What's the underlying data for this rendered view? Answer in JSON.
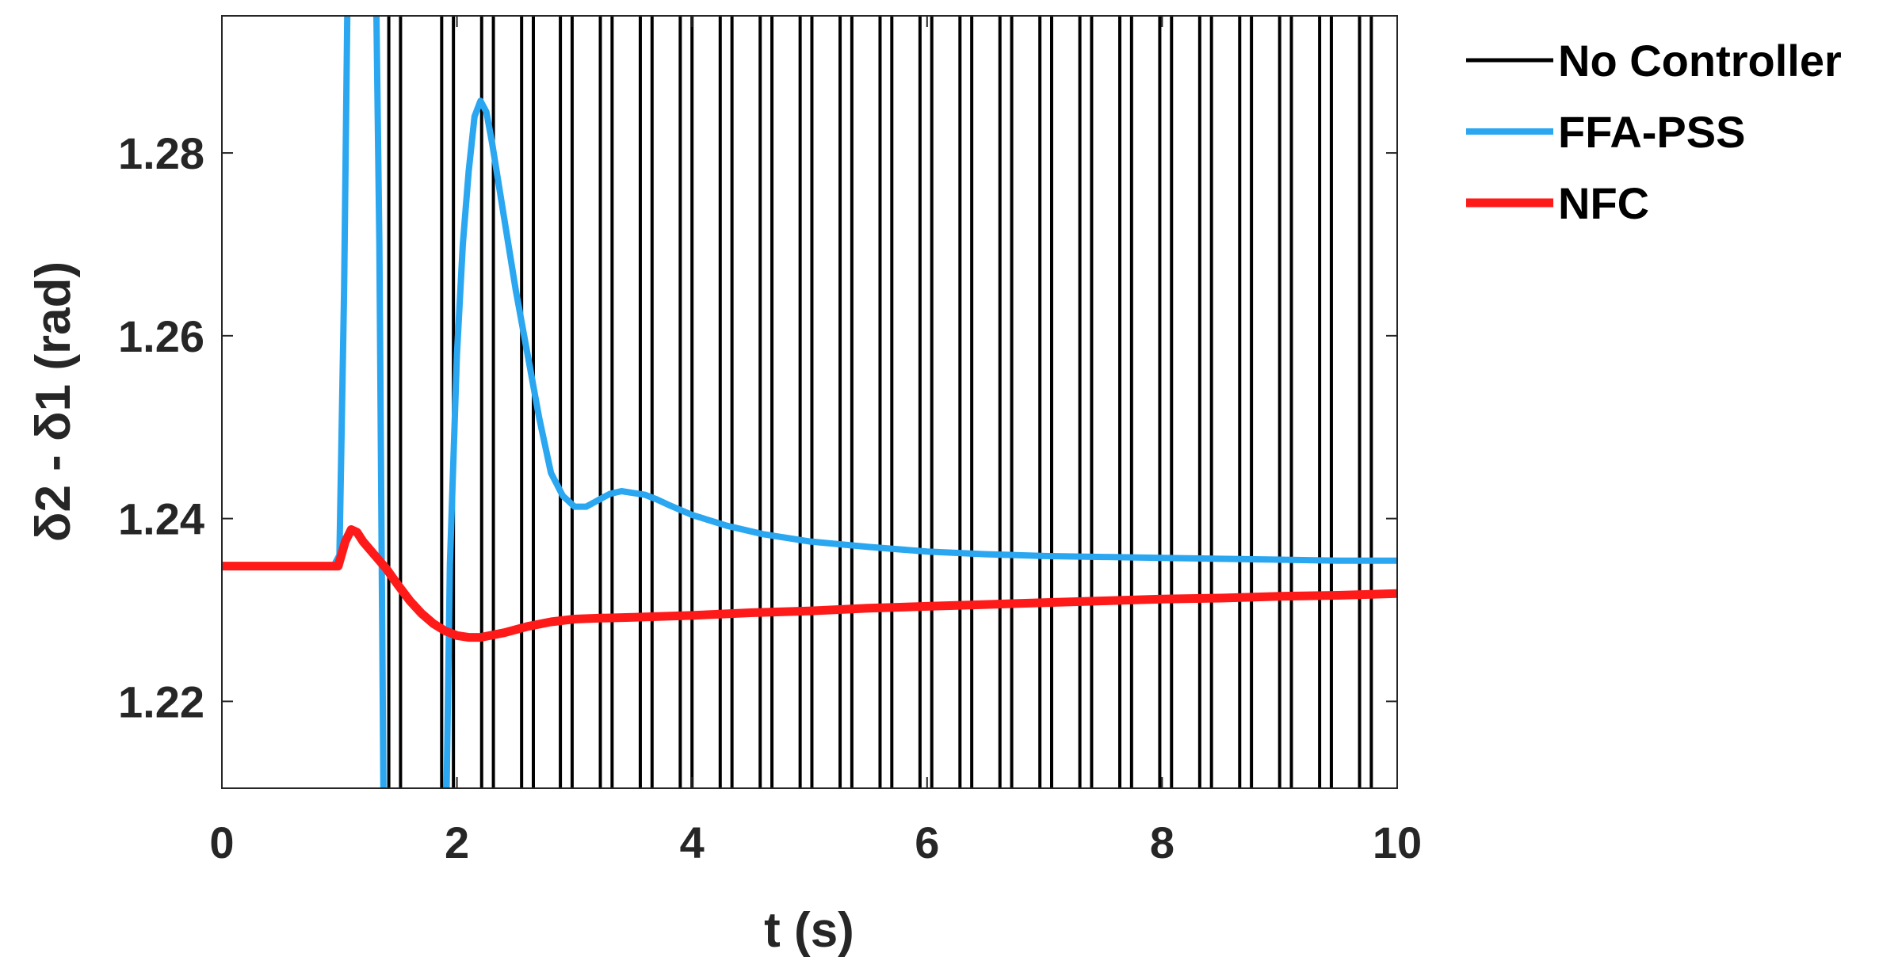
{
  "chart_data": {
    "type": "line",
    "title": "",
    "xlabel": "t (s)",
    "ylabel": "δ2 - δ1 (rad)",
    "xlim": [
      0,
      10
    ],
    "ylim": [
      1.2105,
      1.295
    ],
    "xticks": [
      0,
      2,
      4,
      6,
      8,
      10
    ],
    "xtick_labels": [
      "0",
      "2",
      "4",
      "6",
      "8",
      "10"
    ],
    "yticks": [
      1.22,
      1.24,
      1.26,
      1.28
    ],
    "ytick_labels": [
      "1.22",
      "1.24",
      "1.26",
      "1.28"
    ],
    "grid": false,
    "legend_position": "outside-top-right",
    "series": [
      {
        "name": "No Controller",
        "color": "#000000",
        "style": "vertical oscillation crossing full axis range",
        "crossing_times": [
          1.42,
          1.52,
          1.87,
          1.97,
          2.21,
          2.31,
          2.55,
          2.65,
          2.88,
          2.98,
          3.22,
          3.32,
          3.56,
          3.66,
          3.9,
          4.0,
          4.24,
          4.34,
          4.58,
          4.68,
          4.92,
          5.02,
          5.26,
          5.36,
          5.6,
          5.7,
          5.94,
          6.04,
          6.28,
          6.38,
          6.62,
          6.72,
          6.96,
          7.06,
          7.3,
          7.4,
          7.64,
          7.74,
          7.98,
          8.08,
          8.32,
          8.42,
          8.66,
          8.76,
          9.0,
          9.1,
          9.34,
          9.44,
          9.68,
          9.78
        ]
      },
      {
        "name": "FFA-PSS",
        "color": "#2aa7f0",
        "x": [
          0,
          0.5,
          0.95,
          1.0,
          1.04,
          1.08,
          1.3,
          1.34,
          1.38,
          1.9,
          1.94,
          2.0,
          2.05,
          2.1,
          2.15,
          2.2,
          2.25,
          2.3,
          2.4,
          2.5,
          2.6,
          2.7,
          2.8,
          2.9,
          3.0,
          3.1,
          3.2,
          3.3,
          3.4,
          3.5,
          3.6,
          3.7,
          3.8,
          4.0,
          4.3,
          4.6,
          5.0,
          5.5,
          6.0,
          6.5,
          7.0,
          7.5,
          8.0,
          8.5,
          9.0,
          9.5,
          10.0
        ],
        "y": [
          1.2348,
          1.2348,
          1.2348,
          1.236,
          1.265,
          1.31,
          1.31,
          1.27,
          1.2,
          1.2,
          1.235,
          1.258,
          1.27,
          1.278,
          1.284,
          1.2857,
          1.2845,
          1.281,
          1.273,
          1.265,
          1.258,
          1.251,
          1.245,
          1.2425,
          1.2413,
          1.2413,
          1.242,
          1.2427,
          1.243,
          1.2428,
          1.2426,
          1.2421,
          1.2415,
          1.2404,
          1.2392,
          1.2383,
          1.2375,
          1.2369,
          1.2364,
          1.2361,
          1.2359,
          1.2358,
          1.2357,
          1.2356,
          1.2355,
          1.2354,
          1.2354
        ]
      },
      {
        "name": "NFC",
        "color": "#ff1a1a",
        "x": [
          0,
          0.5,
          0.99,
          1.05,
          1.1,
          1.15,
          1.2,
          1.3,
          1.4,
          1.5,
          1.6,
          1.7,
          1.8,
          1.9,
          2.0,
          2.1,
          2.2,
          2.4,
          2.6,
          2.8,
          3.0,
          3.2,
          3.5,
          4.0,
          4.5,
          5.0,
          5.5,
          6.0,
          6.5,
          7.0,
          7.5,
          8.0,
          8.5,
          9.0,
          9.5,
          10.0
        ],
        "y": [
          1.2348,
          1.2348,
          1.2348,
          1.2375,
          1.2388,
          1.2385,
          1.2375,
          1.236,
          1.2345,
          1.2327,
          1.231,
          1.2296,
          1.2285,
          1.2277,
          1.2272,
          1.227,
          1.227,
          1.2275,
          1.2282,
          1.2287,
          1.229,
          1.2291,
          1.2292,
          1.2294,
          1.2297,
          1.2299,
          1.2302,
          1.2304,
          1.2306,
          1.2308,
          1.231,
          1.2312,
          1.2313,
          1.2315,
          1.2316,
          1.2318
        ]
      }
    ]
  }
}
